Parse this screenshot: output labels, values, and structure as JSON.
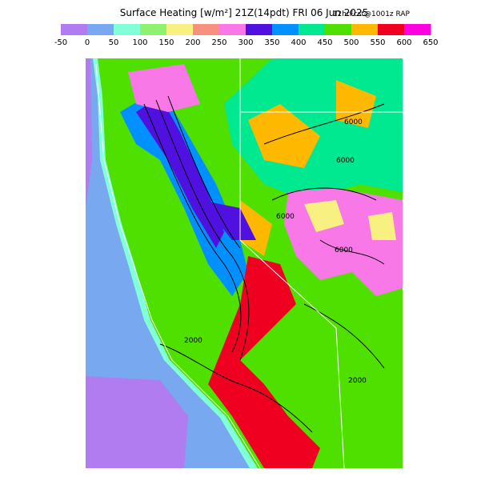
{
  "header": {
    "title": "Surface Heating [w/m²] 21Z(14pdt) FRI 06 Jun 2025",
    "forecast": "12hrFcst@1001z RAP"
  },
  "colorbar": {
    "labels": [
      -50,
      0,
      50,
      100,
      150,
      200,
      250,
      300,
      350,
      400,
      450,
      500,
      550,
      600,
      650
    ],
    "colors": [
      "#b07cf0",
      "#78a8f0",
      "#80ffd8",
      "#90f070",
      "#f8f080",
      "#f89080",
      "#f878e8",
      "#5010e0",
      "#0090ff",
      "#00e890",
      "#50e000",
      "#ffb800",
      "#f00020",
      "#ff00e0"
    ]
  },
  "contour_labels": [
    "6000",
    "6000",
    "6000",
    "6000",
    "2000",
    "2000"
  ]
}
